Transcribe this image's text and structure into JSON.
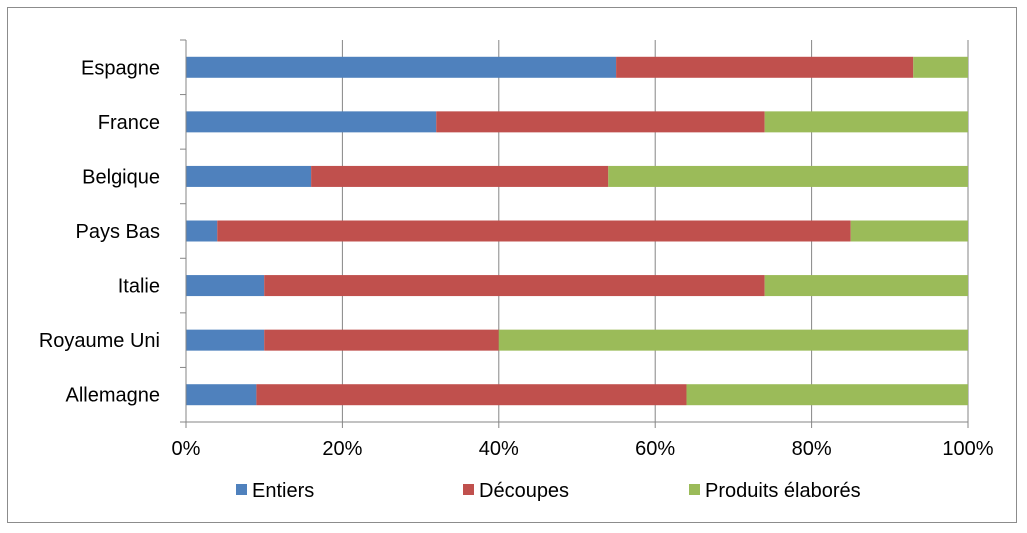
{
  "chart_data": {
    "type": "bar",
    "orientation": "horizontal",
    "stacked": "percent",
    "categories": [
      "Espagne",
      "France",
      "Belgique",
      "Pays Bas",
      "Italie",
      "Royaume Uni",
      "Allemagne"
    ],
    "series": [
      {
        "name": "Entiers",
        "color": "#4F81BD",
        "values": [
          55,
          32,
          16,
          4,
          10,
          10,
          9
        ]
      },
      {
        "name": "Découpes",
        "color": "#C0504D",
        "values": [
          38,
          42,
          38,
          81,
          64,
          30,
          55
        ]
      },
      {
        "name": "Produits élaborés",
        "color": "#9BBB59",
        "values": [
          7,
          26,
          46,
          15,
          26,
          60,
          36
        ]
      }
    ],
    "x_ticks": [
      "0%",
      "20%",
      "40%",
      "60%",
      "80%",
      "100%"
    ],
    "xlim": [
      0,
      100
    ],
    "grid": true,
    "legend_position": "bottom"
  }
}
